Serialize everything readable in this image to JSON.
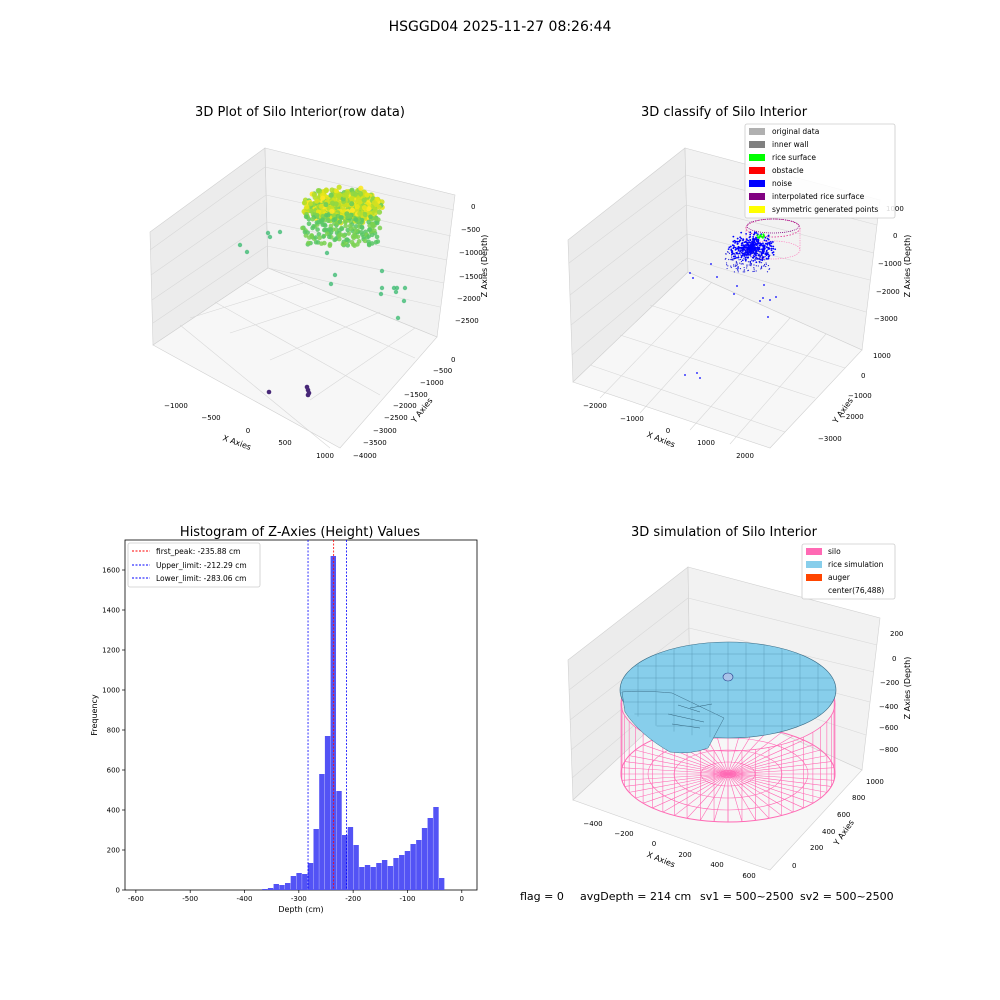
{
  "page_title": "HSGGD04 2025-11-27 08:26:44",
  "footer": {
    "flag": "flag = 0",
    "avg_depth": "avgDepth = 214 cm",
    "sv1": "sv1 = 500~2500",
    "sv2": "sv2 = 500~2500"
  },
  "chart_data": [
    {
      "type": "scatter",
      "title": "3D Plot of Silo Interior(row data)",
      "xlabel": "X Axies",
      "ylabel": "Y Axies",
      "zlabel": "Z Axies (Depth)",
      "x_ticks": [
        "−1000",
        "−500",
        "0",
        "500",
        "1000"
      ],
      "y_ticks": [
        "−4000",
        "−3500",
        "−3000",
        "−2500",
        "−2000",
        "−1500",
        "−1000",
        "−500",
        "0"
      ],
      "z_ticks": [
        "0",
        "−500",
        "−1000",
        "−1500",
        "−2000",
        "−2500"
      ],
      "colormap": "viridis",
      "grid": true
    },
    {
      "type": "scatter",
      "title": "3D classify of Silo Interior",
      "xlabel": "X Axies",
      "ylabel": "Y Axies",
      "zlabel": "Z Axies (Depth)",
      "x_ticks": [
        "−2000",
        "−1000",
        "0",
        "1000",
        "2000"
      ],
      "y_ticks": [
        "−3000",
        "−2000",
        "−1000",
        "0",
        "1000"
      ],
      "z_ticks": [
        "1000",
        "0",
        "−1000",
        "−2000",
        "−3000"
      ],
      "legend_position": "top-right",
      "legend": [
        {
          "label": "original data",
          "color": "#b0b0b0"
        },
        {
          "label": "inner wall",
          "color": "#808080"
        },
        {
          "label": "rice surface",
          "color": "#00ff00"
        },
        {
          "label": "obstacle",
          "color": "#ff0000"
        },
        {
          "label": "noise",
          "color": "#0000ff"
        },
        {
          "label": "interpolated rice surface",
          "color": "#800080"
        },
        {
          "label": "symmetric generated points",
          "color": "#ffff00"
        }
      ],
      "grid": true
    },
    {
      "type": "bar",
      "title": "Histogram of Z-Axies (Height) Values",
      "xlabel": "Depth (cm)",
      "ylabel": "Frequency",
      "xlim": [
        -620,
        28
      ],
      "ylim": [
        0,
        1750
      ],
      "x_ticks": [
        -600,
        -500,
        -400,
        -300,
        -200,
        -100,
        0
      ],
      "y_ticks": [
        0,
        200,
        400,
        600,
        800,
        1000,
        1200,
        1400,
        1600
      ],
      "bar_color": "#5050f5",
      "bin_width": 10.5,
      "bins_start": [
        -367.5,
        -357,
        -346.5,
        -336,
        -325.5,
        -315,
        -304.5,
        -294,
        -283.5,
        -273,
        -262.5,
        -252,
        -241.5,
        -231,
        -220.5,
        -210,
        -199.5,
        -189,
        -178.5,
        -168,
        -157.5,
        -147,
        -136.5,
        -126,
        -115.5,
        -105,
        -94.5,
        -84,
        -73.5,
        -63,
        -52.5,
        -42,
        -31.5,
        -21,
        -10.5,
        0
      ],
      "values": [
        5,
        10,
        30,
        25,
        35,
        70,
        85,
        80,
        135,
        305,
        580,
        770,
        1670,
        495,
        275,
        315,
        225,
        115,
        125,
        115,
        135,
        150,
        120,
        160,
        175,
        195,
        230,
        250,
        310,
        360,
        415,
        60,
        0,
        0,
        0,
        0
      ],
      "vlines": [
        {
          "label": "first_peak: -235.88 cm",
          "value": -235.88,
          "color": "#ff0000"
        },
        {
          "label": "Upper_limit: -212.29 cm",
          "value": -212.29,
          "color": "#0000ff"
        },
        {
          "label": "Lower_limit: -283.06 cm",
          "value": -283.06,
          "color": "#0000ff"
        }
      ],
      "legend_position": "top-left"
    },
    {
      "type": "surface",
      "title": "3D simulation of Silo Interior",
      "xlabel": "X Axies",
      "ylabel": "Y Axies",
      "zlabel": "Z Axies (Depth)",
      "x_ticks": [
        "−400",
        "−200",
        "0",
        "200",
        "400",
        "600"
      ],
      "y_ticks": [
        "0",
        "200",
        "400",
        "600",
        "800",
        "1000"
      ],
      "z_ticks": [
        "200",
        "0",
        "−200",
        "−400",
        "−600",
        "−800"
      ],
      "legend_position": "top-right",
      "legend": [
        {
          "label": "silo",
          "color": "#ff69b4"
        },
        {
          "label": "rice simulation",
          "color": "#87ceeb"
        },
        {
          "label": "auger",
          "color": "#ff4500"
        },
        {
          "label": "center(76,488)",
          "color": "none"
        }
      ]
    }
  ]
}
